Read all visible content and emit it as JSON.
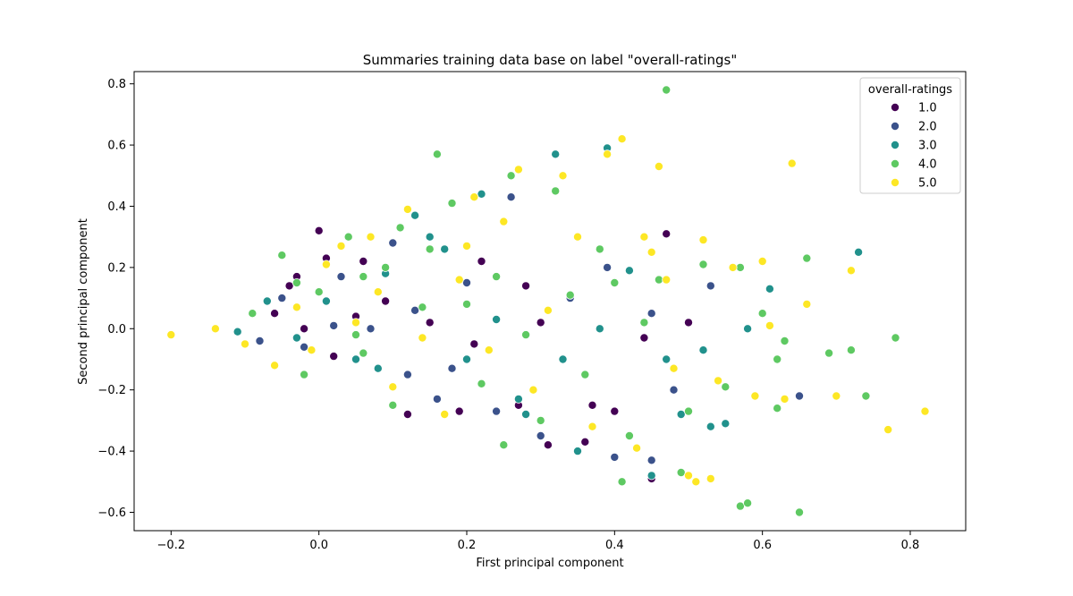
{
  "chart_data": {
    "type": "scatter",
    "title": "Summaries training data base on label \"overall-ratings\"",
    "xlabel": "First principal component",
    "ylabel": "Second principal component",
    "xlim": [
      -0.25,
      0.875
    ],
    "ylim": [
      -0.66,
      0.84
    ],
    "x_ticks": [
      -0.2,
      0.0,
      0.2,
      0.4,
      0.6,
      0.8
    ],
    "x_tick_labels": [
      "−0.2",
      "0.0",
      "0.2",
      "0.4",
      "0.6",
      "0.8"
    ],
    "y_ticks": [
      -0.6,
      -0.4,
      -0.2,
      0.0,
      0.2,
      0.4,
      0.6,
      0.8
    ],
    "y_tick_labels": [
      "−0.6",
      "−0.4",
      "−0.2",
      "0.0",
      "0.2",
      "0.4",
      "0.6",
      "0.8"
    ],
    "grid": false,
    "legend": {
      "title": "overall-ratings",
      "placement": "top-right"
    },
    "series": [
      {
        "name": "1.0",
        "color": "#440154",
        "points": [
          [
            -0.06,
            0.05
          ],
          [
            -0.04,
            0.14
          ],
          [
            -0.02,
            0.0
          ],
          [
            0.0,
            0.32
          ],
          [
            0.01,
            0.23
          ],
          [
            0.02,
            -0.09
          ],
          [
            0.05,
            0.04
          ],
          [
            0.09,
            0.09
          ],
          [
            0.15,
            0.02
          ],
          [
            0.21,
            -0.05
          ],
          [
            0.27,
            -0.25
          ],
          [
            0.31,
            -0.38
          ],
          [
            0.36,
            -0.37
          ],
          [
            0.37,
            -0.25
          ],
          [
            0.4,
            -0.27
          ],
          [
            0.45,
            -0.49
          ],
          [
            0.47,
            0.31
          ],
          [
            0.5,
            0.02
          ],
          [
            0.28,
            0.14
          ],
          [
            0.12,
            -0.28
          ],
          [
            0.19,
            -0.27
          ],
          [
            0.22,
            0.22
          ],
          [
            0.3,
            0.02
          ],
          [
            0.44,
            -0.03
          ],
          [
            -0.03,
            0.17
          ],
          [
            0.06,
            0.22
          ]
        ]
      },
      {
        "name": "2.0",
        "color": "#3b528b",
        "points": [
          [
            -0.08,
            -0.04
          ],
          [
            -0.05,
            0.1
          ],
          [
            -0.02,
            -0.06
          ],
          [
            0.03,
            0.17
          ],
          [
            0.07,
            0.0
          ],
          [
            0.1,
            0.28
          ],
          [
            0.13,
            0.06
          ],
          [
            0.18,
            -0.13
          ],
          [
            0.24,
            -0.27
          ],
          [
            0.3,
            -0.35
          ],
          [
            0.34,
            0.1
          ],
          [
            0.39,
            0.2
          ],
          [
            0.45,
            0.05
          ],
          [
            0.48,
            -0.2
          ],
          [
            0.53,
            0.14
          ],
          [
            0.65,
            -0.22
          ],
          [
            0.4,
            -0.42
          ],
          [
            0.26,
            0.43
          ],
          [
            0.16,
            -0.23
          ],
          [
            0.08,
            0.12
          ],
          [
            0.02,
            0.01
          ],
          [
            0.2,
            0.15
          ],
          [
            0.12,
            -0.15
          ],
          [
            0.45,
            -0.43
          ]
        ]
      },
      {
        "name": "3.0",
        "color": "#21918c",
        "points": [
          [
            -0.11,
            -0.01
          ],
          [
            -0.07,
            0.09
          ],
          [
            -0.03,
            -0.03
          ],
          [
            0.01,
            0.09
          ],
          [
            0.05,
            -0.1
          ],
          [
            0.09,
            0.18
          ],
          [
            0.13,
            0.37
          ],
          [
            0.17,
            0.26
          ],
          [
            0.2,
            -0.1
          ],
          [
            0.24,
            0.03
          ],
          [
            0.28,
            -0.28
          ],
          [
            0.32,
            0.57
          ],
          [
            0.33,
            -0.1
          ],
          [
            0.38,
            0.0
          ],
          [
            0.39,
            0.59
          ],
          [
            0.42,
            0.19
          ],
          [
            0.47,
            -0.1
          ],
          [
            0.49,
            -0.28
          ],
          [
            0.53,
            -0.32
          ],
          [
            0.55,
            -0.31
          ],
          [
            0.58,
            0.0
          ],
          [
            0.61,
            0.13
          ],
          [
            0.73,
            0.25
          ],
          [
            0.45,
            -0.48
          ],
          [
            0.52,
            -0.07
          ],
          [
            0.15,
            0.3
          ],
          [
            0.22,
            0.44
          ],
          [
            0.08,
            -0.13
          ],
          [
            0.35,
            -0.4
          ],
          [
            0.27,
            -0.23
          ]
        ]
      },
      {
        "name": "4.0",
        "color": "#5ec962",
        "points": [
          [
            -0.09,
            0.05
          ],
          [
            -0.05,
            0.24
          ],
          [
            -0.02,
            -0.15
          ],
          [
            0.0,
            0.12
          ],
          [
            0.04,
            0.3
          ],
          [
            0.06,
            -0.08
          ],
          [
            0.09,
            0.2
          ],
          [
            0.11,
            0.33
          ],
          [
            0.14,
            0.07
          ],
          [
            0.16,
            0.57
          ],
          [
            0.18,
            0.41
          ],
          [
            0.2,
            0.08
          ],
          [
            0.22,
            -0.18
          ],
          [
            0.24,
            0.17
          ],
          [
            0.26,
            0.5
          ],
          [
            0.28,
            -0.02
          ],
          [
            0.3,
            -0.3
          ],
          [
            0.32,
            0.45
          ],
          [
            0.34,
            0.11
          ],
          [
            0.36,
            -0.15
          ],
          [
            0.38,
            0.26
          ],
          [
            0.4,
            0.15
          ],
          [
            0.42,
            -0.35
          ],
          [
            0.44,
            0.02
          ],
          [
            0.46,
            0.16
          ],
          [
            0.47,
            0.78
          ],
          [
            0.49,
            -0.47
          ],
          [
            0.5,
            -0.27
          ],
          [
            0.52,
            0.21
          ],
          [
            0.55,
            -0.19
          ],
          [
            0.57,
            -0.58
          ],
          [
            0.58,
            -0.57
          ],
          [
            0.6,
            0.05
          ],
          [
            0.62,
            -0.26
          ],
          [
            0.63,
            -0.04
          ],
          [
            0.65,
            -0.6
          ],
          [
            0.66,
            0.23
          ],
          [
            0.69,
            -0.08
          ],
          [
            0.72,
            -0.07
          ],
          [
            0.74,
            -0.22
          ],
          [
            0.78,
            -0.03
          ],
          [
            0.62,
            -0.1
          ],
          [
            0.57,
            0.2
          ],
          [
            0.41,
            -0.5
          ],
          [
            0.25,
            -0.38
          ],
          [
            0.15,
            0.26
          ],
          [
            0.06,
            0.17
          ],
          [
            0.1,
            -0.25
          ],
          [
            -0.03,
            0.15
          ],
          [
            0.05,
            -0.02
          ]
        ]
      },
      {
        "name": "5.0",
        "color": "#fde725",
        "points": [
          [
            -0.2,
            -0.02
          ],
          [
            -0.14,
            0.0
          ],
          [
            -0.1,
            -0.05
          ],
          [
            -0.06,
            -0.12
          ],
          [
            -0.03,
            0.07
          ],
          [
            0.01,
            0.21
          ],
          [
            0.03,
            0.27
          ],
          [
            0.05,
            0.02
          ],
          [
            0.07,
            0.3
          ],
          [
            0.1,
            -0.19
          ],
          [
            0.12,
            0.39
          ],
          [
            0.14,
            -0.03
          ],
          [
            0.17,
            -0.28
          ],
          [
            0.19,
            0.16
          ],
          [
            0.21,
            0.43
          ],
          [
            0.23,
            -0.07
          ],
          [
            0.25,
            0.35
          ],
          [
            0.27,
            0.52
          ],
          [
            0.29,
            -0.2
          ],
          [
            0.31,
            0.06
          ],
          [
            0.33,
            0.5
          ],
          [
            0.35,
            0.3
          ],
          [
            0.37,
            -0.32
          ],
          [
            0.39,
            0.57
          ],
          [
            0.41,
            0.62
          ],
          [
            0.43,
            -0.39
          ],
          [
            0.44,
            0.3
          ],
          [
            0.46,
            0.53
          ],
          [
            0.47,
            0.16
          ],
          [
            0.48,
            -0.13
          ],
          [
            0.5,
            -0.48
          ],
          [
            0.51,
            -0.5
          ],
          [
            0.52,
            0.29
          ],
          [
            0.54,
            -0.17
          ],
          [
            0.56,
            0.2
          ],
          [
            0.6,
            0.22
          ],
          [
            0.61,
            0.01
          ],
          [
            0.64,
            0.54
          ],
          [
            0.66,
            0.08
          ],
          [
            0.7,
            -0.22
          ],
          [
            0.72,
            0.19
          ],
          [
            0.77,
            -0.33
          ],
          [
            0.82,
            -0.27
          ],
          [
            0.53,
            -0.49
          ],
          [
            0.59,
            -0.22
          ],
          [
            0.63,
            -0.23
          ],
          [
            0.45,
            0.25
          ],
          [
            0.2,
            0.27
          ],
          [
            0.08,
            0.12
          ],
          [
            -0.01,
            -0.07
          ]
        ]
      }
    ]
  }
}
